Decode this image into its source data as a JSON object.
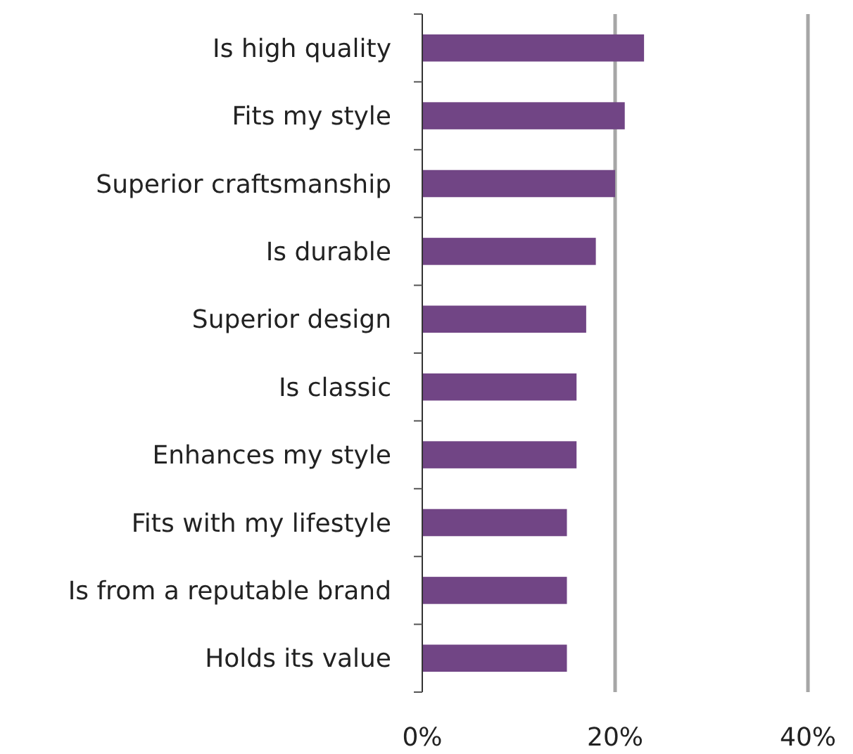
{
  "chart_data": {
    "type": "bar",
    "orientation": "horizontal",
    "categories": [
      "Is high quality",
      "Fits my style",
      "Superior craftsmanship",
      "Is durable",
      "Superior design",
      "Is classic",
      "Enhances my style",
      "Fits with my lifestyle",
      "Is from a reputable brand",
      "Holds its value"
    ],
    "values": [
      23,
      21,
      20,
      18,
      17,
      16,
      16,
      15,
      15,
      15
    ],
    "color": "#714585",
    "xlim": [
      0,
      40
    ],
    "xticks": [
      {
        "value": 0,
        "label": "0%"
      },
      {
        "value": 20,
        "label": "20%"
      },
      {
        "value": 40,
        "label": "40%"
      }
    ],
    "grid": "x"
  }
}
